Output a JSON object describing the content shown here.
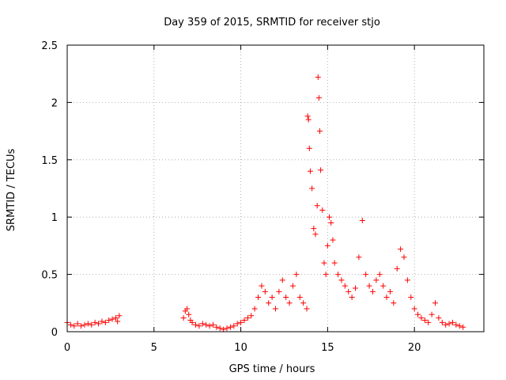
{
  "chart_data": {
    "type": "scatter",
    "title": "Day 359 of 2015, SRMTID for receiver stjo",
    "xlabel": "GPS time / hours",
    "ylabel": "SRMTID / TECUs",
    "xlim": [
      0,
      24
    ],
    "ylim": [
      0,
      2.5
    ],
    "xticks": [
      0,
      5,
      10,
      15,
      20
    ],
    "xtick_labels": [
      "0",
      "5",
      "10",
      "15",
      "20"
    ],
    "yticks": [
      0,
      0.5,
      1,
      1.5,
      2,
      2.5
    ],
    "ytick_labels": [
      "0",
      "0.5",
      "1",
      "1.5",
      "2",
      "2.5"
    ],
    "grid": true,
    "marker": "+",
    "color": "#ff0000",
    "series": [
      {
        "name": "SRMTID",
        "x": [
          0.0,
          0.2,
          0.4,
          0.6,
          0.8,
          1.0,
          1.2,
          1.4,
          1.6,
          1.8,
          2.0,
          2.2,
          2.4,
          2.6,
          2.8,
          3.0,
          2.9,
          6.7,
          6.8,
          6.9,
          7.0,
          7.1,
          7.2,
          7.4,
          7.6,
          7.8,
          8.0,
          8.2,
          8.4,
          8.6,
          8.8,
          9.0,
          9.2,
          9.4,
          9.6,
          9.8,
          10.0,
          10.2,
          10.4,
          10.6,
          10.8,
          11.0,
          11.2,
          11.4,
          11.6,
          11.8,
          12.0,
          12.2,
          12.4,
          12.6,
          12.8,
          13.0,
          13.2,
          13.4,
          13.6,
          13.8,
          13.85,
          13.9,
          13.95,
          14.0,
          14.1,
          14.2,
          14.3,
          14.4,
          14.45,
          14.5,
          14.55,
          14.6,
          14.7,
          14.8,
          14.9,
          15.0,
          15.1,
          15.2,
          15.3,
          15.4,
          15.6,
          15.8,
          16.0,
          16.2,
          16.4,
          16.6,
          16.8,
          17.0,
          17.2,
          17.4,
          17.6,
          17.8,
          18.0,
          18.2,
          18.4,
          18.6,
          18.8,
          19.0,
          19.2,
          19.4,
          19.6,
          19.8,
          20.0,
          20.2,
          20.4,
          20.6,
          20.8,
          21.0,
          21.2,
          21.4,
          21.6,
          21.8,
          22.0,
          22.2,
          22.4,
          22.6,
          22.8
        ],
        "y": [
          0.08,
          0.06,
          0.05,
          0.07,
          0.05,
          0.06,
          0.07,
          0.06,
          0.08,
          0.07,
          0.09,
          0.08,
          0.1,
          0.11,
          0.12,
          0.14,
          0.09,
          0.12,
          0.18,
          0.2,
          0.15,
          0.1,
          0.08,
          0.06,
          0.05,
          0.07,
          0.06,
          0.05,
          0.06,
          0.04,
          0.03,
          0.02,
          0.03,
          0.04,
          0.05,
          0.07,
          0.08,
          0.1,
          0.12,
          0.14,
          0.2,
          0.3,
          0.4,
          0.35,
          0.25,
          0.3,
          0.2,
          0.35,
          0.45,
          0.3,
          0.25,
          0.4,
          0.5,
          0.3,
          0.25,
          0.2,
          1.88,
          1.85,
          1.6,
          1.4,
          1.25,
          0.9,
          0.85,
          1.1,
          2.22,
          2.04,
          1.75,
          1.41,
          1.06,
          0.6,
          0.5,
          0.75,
          1.0,
          0.95,
          0.8,
          0.6,
          0.5,
          0.45,
          0.4,
          0.35,
          0.3,
          0.38,
          0.65,
          0.97,
          0.5,
          0.4,
          0.35,
          0.45,
          0.5,
          0.4,
          0.3,
          0.35,
          0.25,
          0.55,
          0.72,
          0.65,
          0.45,
          0.3,
          0.2,
          0.15,
          0.12,
          0.1,
          0.08,
          0.15,
          0.25,
          0.12,
          0.08,
          0.06,
          0.07,
          0.08,
          0.06,
          0.05,
          0.04
        ]
      }
    ]
  }
}
